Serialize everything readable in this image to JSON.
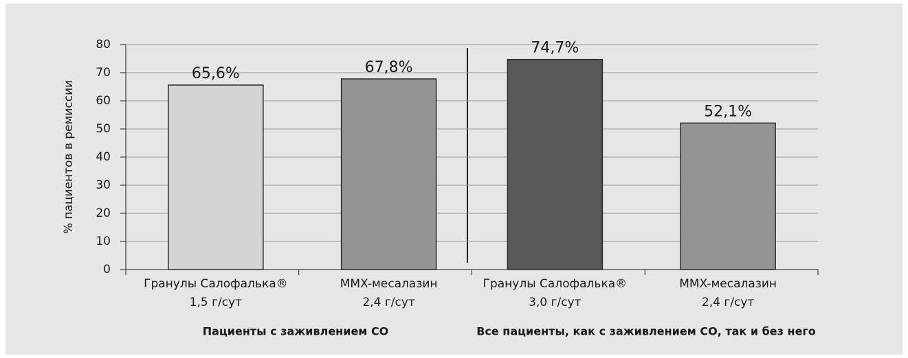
{
  "chart_data": {
    "type": "bar",
    "y_label": "% пациентов в ремиссии",
    "categories": [
      [
        "Гранулы Салофалька®",
        "1,5 г/сут"
      ],
      [
        "MMX-месалазин",
        "2,4 г/сут"
      ],
      [
        "Гранулы Салофалька®",
        "3,0 г/сут"
      ],
      [
        "MMX-месалазин",
        "2,4 г/сут"
      ]
    ],
    "values": [
      65.6,
      67.8,
      74.7,
      52.1
    ],
    "value_labels": [
      "65,6%",
      "67,8%",
      "74,7%",
      "52,1%"
    ],
    "colors": [
      "#d3d4d6",
      "#939496",
      "#58595b",
      "#939496"
    ],
    "groups": [
      "Пациенты с заживлением СО",
      "Все пациенты, как с заживлением СО, так и без него"
    ],
    "ylim": [
      0,
      80
    ],
    "yticks": [
      0,
      10,
      20,
      30,
      40,
      50,
      60,
      70,
      80
    ],
    "grid": true
  }
}
